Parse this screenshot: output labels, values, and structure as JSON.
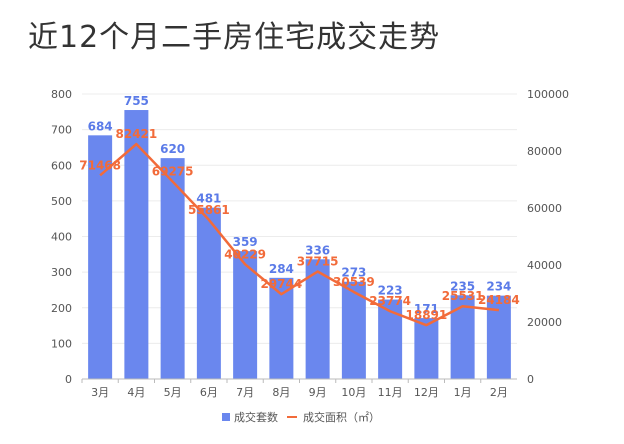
{
  "title": "近12个月二手房住宅成交走势",
  "chart_data": {
    "type": "bar+line",
    "categories": [
      "3月",
      "4月",
      "5月",
      "6月",
      "7月",
      "8月",
      "9月",
      "10月",
      "11月",
      "12月",
      "1月",
      "2月"
    ],
    "series": [
      {
        "name": "成交套数",
        "type": "bar",
        "axis": "left",
        "values": [
          684,
          755,
          620,
          481,
          359,
          284,
          336,
          273,
          223,
          171,
          235,
          234
        ]
      },
      {
        "name": "成交面积（㎡）",
        "type": "line",
        "axis": "right",
        "values": [
          71468,
          82421,
          69275,
          55861,
          40229,
          29744,
          37715,
          30539,
          23774,
          18891,
          25531,
          24184
        ]
      }
    ],
    "y_left": {
      "ylim": [
        0,
        800
      ],
      "ticks": [
        0,
        100,
        200,
        300,
        400,
        500,
        600,
        700,
        800
      ]
    },
    "y_right": {
      "ylim": [
        0,
        100000
      ],
      "ticks": [
        0,
        20000,
        40000,
        60000,
        80000,
        100000
      ]
    },
    "legend_position": "bottom-center",
    "colors": {
      "bar": "#6a87ee",
      "line": "#f26b3a",
      "bar_label": "#5b7be8",
      "line_label": "#f26b3a"
    }
  }
}
